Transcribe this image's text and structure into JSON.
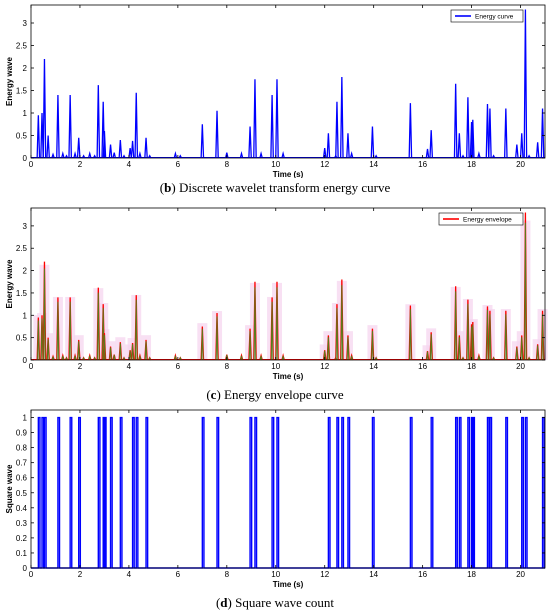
{
  "charts": [
    {
      "id": "b",
      "type": "line",
      "caption_letter": "b",
      "caption_text": "Discrete wavelet transform energy curve",
      "xlabel": "Time (s)",
      "ylabel": "Energy wave",
      "xlim": [
        0,
        21
      ],
      "ylim": [
        0,
        3.4
      ],
      "xticks": [
        0,
        2,
        4,
        6,
        8,
        10,
        12,
        14,
        16,
        18,
        20
      ],
      "yticks": [
        0,
        0.5,
        1,
        1.5,
        2,
        2.5,
        3
      ],
      "legend": "top-right",
      "series": [
        {
          "name": "Energy curve",
          "color": "#0000ff",
          "spikes": [
            [
              0.3,
              0.95
            ],
            [
              0.45,
              1.0
            ],
            [
              0.55,
              2.2
            ],
            [
              0.7,
              0.5
            ],
            [
              0.9,
              0.08
            ],
            [
              1.1,
              1.4
            ],
            [
              1.3,
              0.1
            ],
            [
              1.45,
              0.05
            ],
            [
              1.6,
              1.4
            ],
            [
              1.8,
              0.1
            ],
            [
              1.95,
              0.45
            ],
            [
              2.15,
              0.05
            ],
            [
              2.4,
              0.1
            ],
            [
              2.6,
              0.05
            ],
            [
              2.75,
              1.62
            ],
            [
              2.95,
              1.25
            ],
            [
              3.0,
              0.6
            ],
            [
              3.25,
              0.3
            ],
            [
              3.4,
              0.12
            ],
            [
              3.65,
              0.4
            ],
            [
              3.8,
              0.05
            ],
            [
              4.05,
              0.22
            ],
            [
              4.15,
              0.38
            ],
            [
              4.3,
              1.45
            ],
            [
              4.45,
              0.1
            ],
            [
              4.7,
              0.45
            ],
            [
              4.85,
              0.05
            ],
            [
              5.9,
              0.1
            ],
            [
              6.1,
              0.05
            ],
            [
              7.0,
              0.75
            ],
            [
              7.6,
              1.05
            ],
            [
              8.0,
              0.12
            ],
            [
              8.6,
              0.1
            ],
            [
              8.95,
              0.7
            ],
            [
              9.15,
              1.75
            ],
            [
              9.4,
              0.1
            ],
            [
              9.85,
              1.4
            ],
            [
              10.05,
              1.75
            ],
            [
              10.3,
              0.1
            ],
            [
              12.0,
              0.22
            ],
            [
              12.15,
              0.55
            ],
            [
              12.45,
              0.05
            ],
            [
              12.5,
              1.25
            ],
            [
              12.7,
              1.8
            ],
            [
              12.95,
              0.55
            ],
            [
              13.1,
              0.1
            ],
            [
              13.95,
              0.7
            ],
            [
              14.1,
              0.05
            ],
            [
              15.5,
              1.22
            ],
            [
              16.2,
              0.2
            ],
            [
              16.35,
              0.62
            ],
            [
              17.35,
              1.65
            ],
            [
              17.5,
              0.55
            ],
            [
              17.65,
              0.05
            ],
            [
              17.85,
              1.35
            ],
            [
              18.0,
              0.8
            ],
            [
              18.05,
              0.85
            ],
            [
              18.3,
              0.1
            ],
            [
              18.65,
              1.2
            ],
            [
              18.75,
              1.1
            ],
            [
              18.9,
              0.05
            ],
            [
              19.4,
              1.1
            ],
            [
              19.85,
              0.3
            ],
            [
              20.05,
              0.55
            ],
            [
              20.2,
              3.3
            ],
            [
              20.35,
              0.05
            ],
            [
              20.7,
              0.35
            ],
            [
              20.9,
              1.1
            ]
          ]
        }
      ]
    },
    {
      "id": "c",
      "type": "line",
      "caption_letter": "c",
      "caption_text": "Energy envelope curve",
      "xlabel": "Time (s)",
      "ylabel": "Energy wave",
      "xlim": [
        0,
        21
      ],
      "ylim": [
        0,
        3.4
      ],
      "xticks": [
        0,
        2,
        4,
        6,
        8,
        10,
        12,
        14,
        16,
        18,
        20
      ],
      "yticks": [
        0,
        0.5,
        1,
        1.5,
        2,
        2.5,
        3
      ],
      "legend": "top-right",
      "series": [
        {
          "name": "Energy envelope",
          "color": "#ff0000",
          "overlay_color": "#5a7a1a",
          "shade_color": "#f6d6ef",
          "spikes": [
            [
              0.3,
              0.95
            ],
            [
              0.45,
              1.0
            ],
            [
              0.55,
              2.2
            ],
            [
              0.7,
              0.5
            ],
            [
              0.9,
              0.08
            ],
            [
              1.1,
              1.4
            ],
            [
              1.3,
              0.1
            ],
            [
              1.45,
              0.05
            ],
            [
              1.6,
              1.4
            ],
            [
              1.8,
              0.1
            ],
            [
              1.95,
              0.45
            ],
            [
              2.15,
              0.05
            ],
            [
              2.4,
              0.1
            ],
            [
              2.6,
              0.05
            ],
            [
              2.75,
              1.62
            ],
            [
              2.95,
              1.25
            ],
            [
              3.0,
              0.6
            ],
            [
              3.25,
              0.3
            ],
            [
              3.4,
              0.12
            ],
            [
              3.65,
              0.4
            ],
            [
              3.8,
              0.05
            ],
            [
              4.05,
              0.22
            ],
            [
              4.15,
              0.38
            ],
            [
              4.3,
              1.45
            ],
            [
              4.45,
              0.1
            ],
            [
              4.7,
              0.45
            ],
            [
              4.85,
              0.05
            ],
            [
              5.9,
              0.1
            ],
            [
              6.1,
              0.05
            ],
            [
              7.0,
              0.75
            ],
            [
              7.6,
              1.05
            ],
            [
              8.0,
              0.12
            ],
            [
              8.6,
              0.1
            ],
            [
              8.95,
              0.7
            ],
            [
              9.15,
              1.75
            ],
            [
              9.4,
              0.1
            ],
            [
              9.85,
              1.4
            ],
            [
              10.05,
              1.75
            ],
            [
              10.3,
              0.1
            ],
            [
              12.0,
              0.22
            ],
            [
              12.15,
              0.55
            ],
            [
              12.45,
              0.05
            ],
            [
              12.5,
              1.25
            ],
            [
              12.7,
              1.8
            ],
            [
              12.95,
              0.55
            ],
            [
              13.1,
              0.1
            ],
            [
              13.95,
              0.7
            ],
            [
              14.1,
              0.05
            ],
            [
              15.5,
              1.22
            ],
            [
              16.2,
              0.2
            ],
            [
              16.35,
              0.62
            ],
            [
              17.35,
              1.65
            ],
            [
              17.5,
              0.55
            ],
            [
              17.65,
              0.05
            ],
            [
              17.85,
              1.35
            ],
            [
              18.0,
              0.8
            ],
            [
              18.05,
              0.85
            ],
            [
              18.3,
              0.1
            ],
            [
              18.65,
              1.2
            ],
            [
              18.75,
              1.1
            ],
            [
              18.9,
              0.05
            ],
            [
              19.4,
              1.1
            ],
            [
              19.85,
              0.3
            ],
            [
              20.05,
              0.55
            ],
            [
              20.2,
              3.3
            ],
            [
              20.35,
              0.05
            ],
            [
              20.7,
              0.35
            ],
            [
              20.9,
              1.1
            ]
          ]
        }
      ]
    },
    {
      "id": "d",
      "type": "line",
      "caption_letter": "d",
      "caption_text": "Square wave count",
      "xlabel": "Time (s)",
      "ylabel": "Square wave",
      "xlim": [
        0,
        21
      ],
      "ylim": [
        0,
        1.05
      ],
      "xticks": [
        0,
        2,
        4,
        6,
        8,
        10,
        12,
        14,
        16,
        18,
        20
      ],
      "yticks": [
        0,
        0.1,
        0.2,
        0.3,
        0.4,
        0.5,
        0.6,
        0.7,
        0.8,
        0.9,
        1
      ],
      "legend": "none",
      "series": [
        {
          "color": "#0000ff",
          "pulses": [
            0.3,
            0.45,
            0.55,
            1.1,
            1.6,
            1.95,
            2.75,
            2.95,
            3.0,
            3.25,
            3.65,
            4.15,
            4.3,
            4.7,
            7.0,
            7.6,
            8.95,
            9.15,
            9.85,
            10.05,
            12.15,
            12.5,
            12.7,
            12.95,
            13.95,
            15.5,
            16.35,
            17.35,
            17.5,
            17.85,
            18.0,
            18.05,
            18.65,
            18.75,
            19.4,
            20.05,
            20.2,
            20.9
          ]
        }
      ]
    }
  ]
}
